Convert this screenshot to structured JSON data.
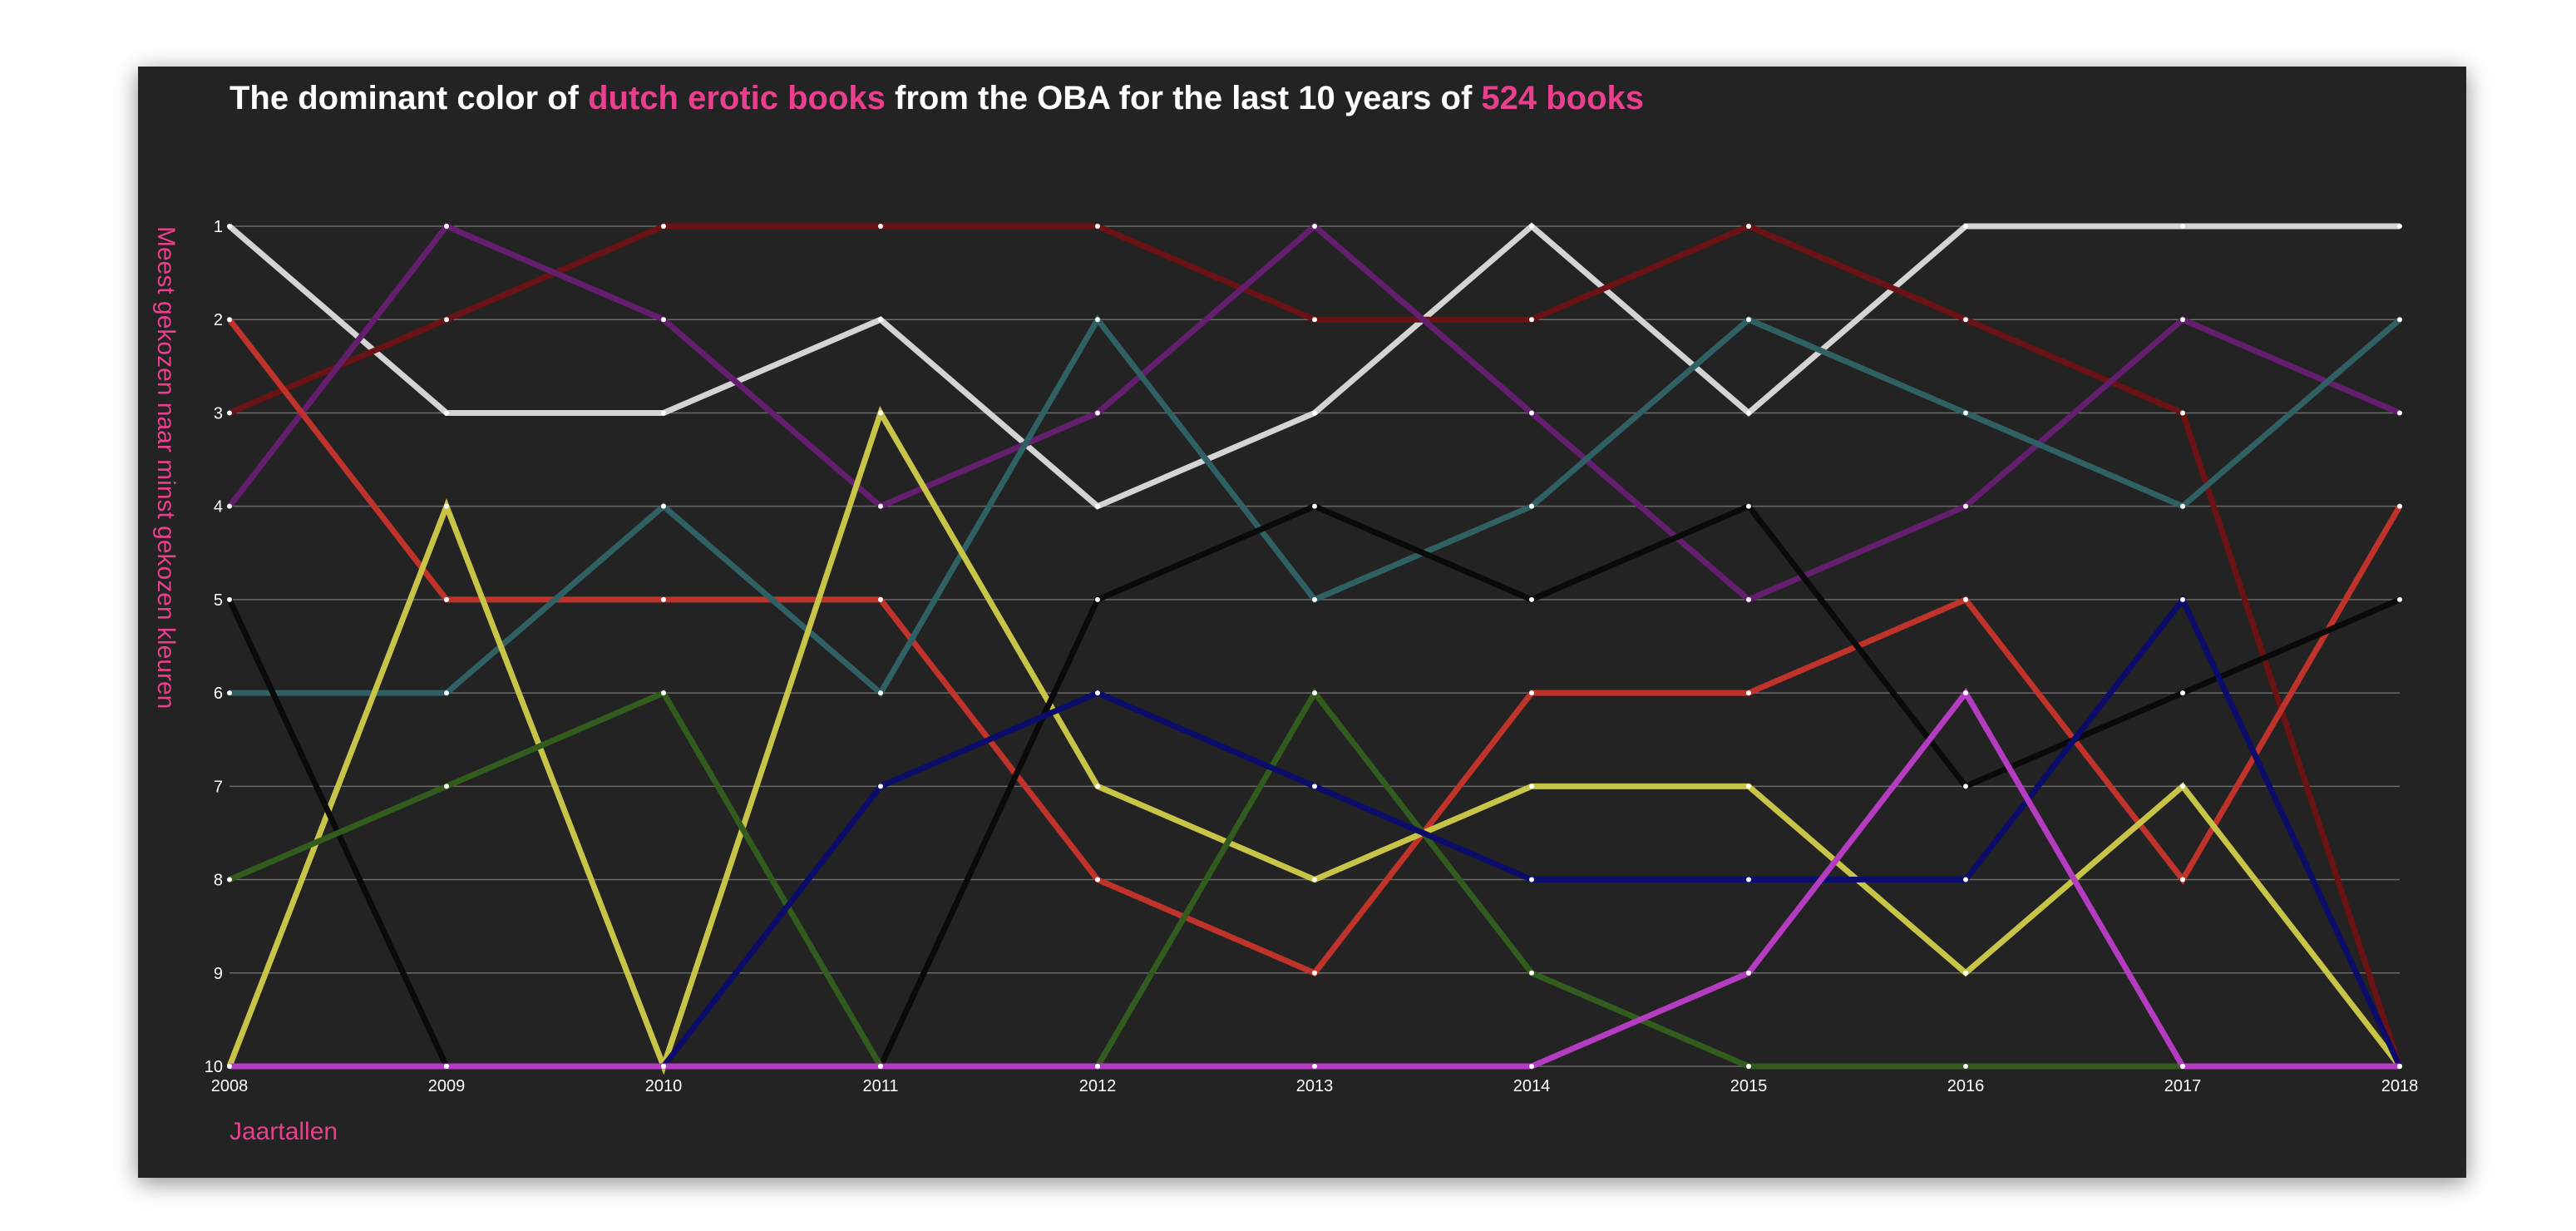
{
  "chart_data": {
    "type": "line",
    "title": {
      "parts": [
        {
          "text": "The dominant color of ",
          "highlight": false
        },
        {
          "text": "dutch erotic books",
          "highlight": true
        },
        {
          "text": " from the OBA for the last 10 years of ",
          "highlight": false
        },
        {
          "text": "524 books",
          "highlight": true
        }
      ]
    },
    "xlabel": "Jaartallen",
    "ylabel": "Meest gekozen naar minst gekozen kleuren",
    "x": [
      2008,
      2009,
      2010,
      2011,
      2012,
      2013,
      2014,
      2015,
      2016,
      2017,
      2018
    ],
    "ylim": [
      1,
      10
    ],
    "y_inverted": true,
    "y_ticks": [
      1,
      2,
      3,
      4,
      5,
      6,
      7,
      8,
      9,
      10
    ],
    "grid": "horizontal",
    "colors": {
      "background": "#232323",
      "text": "#ffffff",
      "highlight": "#e8408c",
      "gridline": "#6a6a6a"
    },
    "series": [
      {
        "color": "#d4d4d4",
        "values": [
          1,
          3,
          3,
          2,
          4,
          3,
          1,
          3,
          1,
          1,
          1
        ]
      },
      {
        "color": "#6b1214",
        "values": [
          3,
          2,
          1,
          1,
          1,
          2,
          2,
          1,
          2,
          3,
          10
        ]
      },
      {
        "color": "#641e6e",
        "values": [
          4,
          1,
          2,
          4,
          3,
          1,
          3,
          5,
          4,
          2,
          3
        ]
      },
      {
        "color": "#c0332a",
        "values": [
          2,
          5,
          5,
          5,
          8,
          9,
          6,
          6,
          5,
          8,
          4
        ]
      },
      {
        "color": "#2e6064",
        "values": [
          6,
          6,
          4,
          6,
          2,
          5,
          4,
          2,
          3,
          4,
          2
        ]
      },
      {
        "color": "#c8c448",
        "values": [
          10,
          4,
          10,
          3,
          7,
          8,
          7,
          7,
          9,
          7,
          10
        ]
      },
      {
        "color": "#0a0a0a",
        "values": [
          5,
          10,
          10,
          10,
          5,
          4,
          5,
          4,
          7,
          6,
          5
        ]
      },
      {
        "color": "#325c1e",
        "values": [
          8,
          7,
          6,
          10,
          10,
          6,
          9,
          10,
          10,
          10,
          10
        ]
      },
      {
        "color": "#0c0c6a",
        "values": [
          10,
          10,
          10,
          7,
          6,
          7,
          8,
          8,
          8,
          5,
          10
        ]
      },
      {
        "color": "#b43cc0",
        "values": [
          10,
          10,
          10,
          10,
          10,
          10,
          10,
          9,
          6,
          10,
          10
        ]
      }
    ]
  }
}
